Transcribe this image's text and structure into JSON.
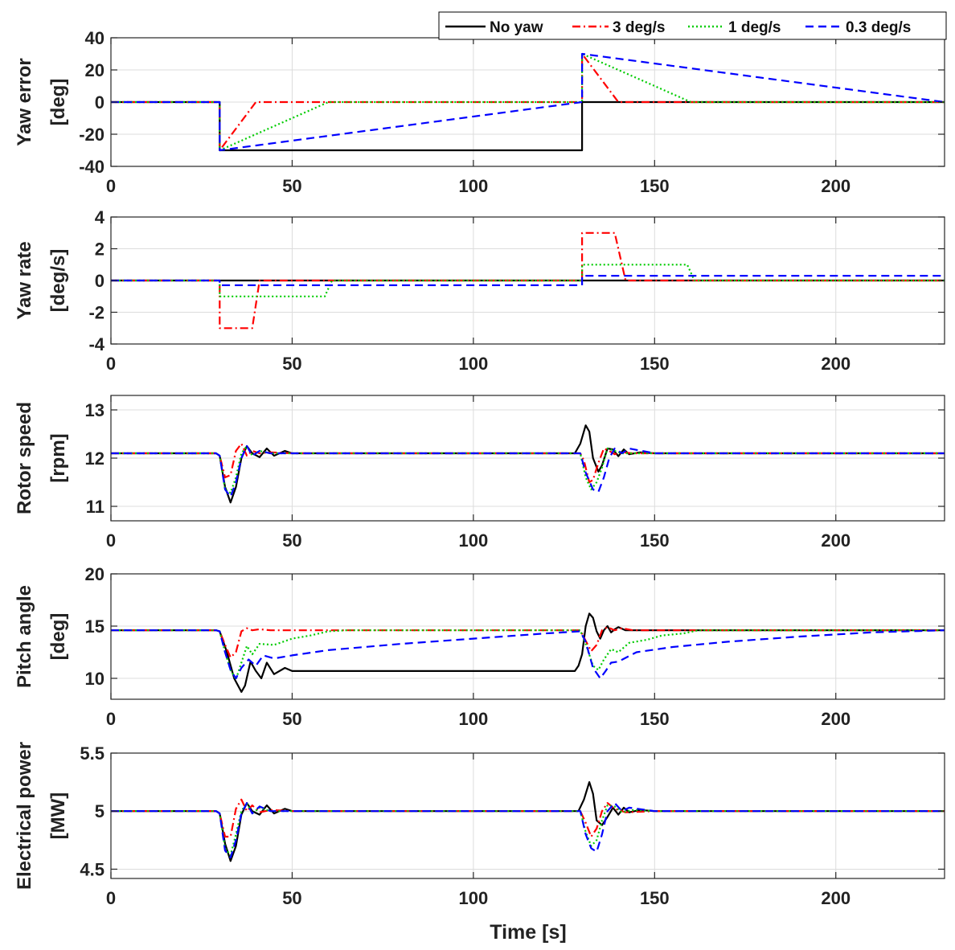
{
  "chart_data": {
    "type": "line",
    "xlabel": "Time [s]",
    "xlim": [
      0,
      230
    ],
    "xticks": [
      0,
      50,
      100,
      150,
      200
    ],
    "grid": true,
    "legend": {
      "placement": "top-right",
      "entries": [
        {
          "name": "No yaw",
          "color": "#000000",
          "style": "solid"
        },
        {
          "name": "3 deg/s",
          "color": "#ff0000",
          "style": "dashdot"
        },
        {
          "name": "1 deg/s",
          "color": "#00cc00",
          "style": "dotted"
        },
        {
          "name": "0.3 deg/s",
          "color": "#0000ff",
          "style": "dashed"
        }
      ]
    },
    "panels": [
      {
        "ylabel": [
          "Yaw error",
          "[deg]"
        ],
        "ylim": [
          -40,
          40
        ],
        "yticks": [
          -40,
          -20,
          0,
          20,
          40
        ],
        "series": [
          {
            "name": "No yaw",
            "x": [
              0,
              30,
              30,
              130,
              130,
              230
            ],
            "y": [
              0,
              0,
              -30,
              -30,
              0,
              0
            ]
          },
          {
            "name": "3 deg/s",
            "x": [
              0,
              30,
              30,
              40,
              130,
              130,
              140,
              230
            ],
            "y": [
              0,
              0,
              -30,
              0,
              0,
              30,
              0,
              0
            ]
          },
          {
            "name": "1 deg/s",
            "x": [
              0,
              30,
              30,
              60,
              130,
              130,
              160,
              230
            ],
            "y": [
              0,
              0,
              -30,
              0,
              0,
              30,
              0,
              0
            ]
          },
          {
            "name": "0.3 deg/s",
            "x": [
              0,
              30,
              30,
              130,
              130,
              230
            ],
            "y": [
              0,
              0,
              -30,
              0,
              30,
              0
            ]
          }
        ]
      },
      {
        "ylabel": [
          "Yaw rate",
          "[deg/s]"
        ],
        "ylim": [
          -4,
          4
        ],
        "yticks": [
          -4,
          -2,
          0,
          2,
          4
        ],
        "series": [
          {
            "name": "No yaw",
            "x": [
              0,
              230
            ],
            "y": [
              0,
              0
            ]
          },
          {
            "name": "3 deg/s",
            "x": [
              0,
              30,
              30,
              39,
              41,
              130,
              130,
              139,
              142,
              230
            ],
            "y": [
              0,
              0,
              -3,
              -3,
              0,
              0,
              3,
              3,
              0,
              0
            ]
          },
          {
            "name": "1 deg/s",
            "x": [
              0,
              30,
              30,
              59,
              61,
              130,
              130,
              159,
              161,
              230
            ],
            "y": [
              0,
              0,
              -1,
              -1,
              0,
              0,
              1,
              1,
              0,
              0
            ]
          },
          {
            "name": "0.3 deg/s",
            "x": [
              0,
              30,
              30,
              130,
              130,
              230
            ],
            "y": [
              0,
              0,
              -0.3,
              -0.3,
              0.3,
              0.3
            ]
          }
        ]
      },
      {
        "ylabel": [
          "Rotor speed",
          "[rpm]"
        ],
        "ylim": [
          10.7,
          13.3
        ],
        "yticks": [
          11,
          12,
          13
        ],
        "series": [
          {
            "name": "No yaw",
            "x": [
              0,
              29,
              30,
              31.5,
              33,
              34.5,
              36,
              37.5,
              39,
              41,
              43,
              45,
              48,
              50,
              128,
              129.5,
              131,
              132,
              133,
              134.5,
              135.5,
              137,
              138.5,
              140,
              141.5,
              143,
              146,
              150,
              230
            ],
            "y": [
              12.1,
              12.1,
              12.05,
              11.4,
              11.08,
              11.4,
              12.0,
              12.25,
              12.1,
              12.02,
              12.2,
              12.05,
              12.15,
              12.1,
              12.1,
              12.3,
              12.68,
              12.55,
              12.0,
              11.72,
              11.85,
              12.2,
              12.18,
              12.04,
              12.18,
              12.08,
              12.12,
              12.1,
              12.1
            ]
          },
          {
            "name": "3 deg/s",
            "x": [
              0,
              29,
              30,
              31.5,
              33,
              34.5,
              36,
              37.5,
              39,
              41,
              44,
              50,
              129.5,
              130.5,
              132,
              133,
              134.5,
              136,
              137.5,
              139,
              141,
              144,
              150,
              230
            ],
            "y": [
              12.1,
              12.1,
              12.05,
              11.6,
              11.65,
              12.15,
              12.3,
              12.05,
              12.15,
              12.1,
              12.12,
              12.1,
              12.1,
              11.95,
              11.5,
              11.55,
              11.9,
              12.2,
              12.15,
              12.08,
              12.12,
              12.1,
              12.1,
              12.1
            ]
          },
          {
            "name": "1 deg/s",
            "x": [
              0,
              29,
              30,
              31.5,
              33,
              34.5,
              36,
              37.5,
              39,
              41,
              44,
              50,
              129.5,
              131,
              132.5,
              134,
              135.5,
              137,
              139,
              141,
              144,
              150,
              230
            ],
            "y": [
              12.1,
              12.1,
              12.05,
              11.35,
              11.28,
              11.6,
              12.1,
              12.25,
              12.05,
              12.15,
              12.1,
              12.1,
              12.1,
              11.6,
              11.35,
              11.5,
              11.8,
              12.2,
              12.15,
              12.1,
              12.1,
              12.1,
              12.1
            ]
          },
          {
            "name": "0.3 deg/s",
            "x": [
              0,
              29,
              30,
              31.5,
              33,
              34.5,
              36,
              37.5,
              39,
              41,
              44,
              50,
              129.5,
              131,
              133,
              134.5,
              136,
              137.5,
              139,
              141,
              143,
              150,
              230
            ],
            "y": [
              12.1,
              12.1,
              12.05,
              11.35,
              11.2,
              11.5,
              12.0,
              12.25,
              12.05,
              12.15,
              12.1,
              12.1,
              12.1,
              11.7,
              11.35,
              11.3,
              11.6,
              12.0,
              12.2,
              12.1,
              12.2,
              12.1,
              12.1
            ]
          }
        ]
      },
      {
        "ylabel": [
          "Pitch angle",
          "[deg]"
        ],
        "ylim": [
          8,
          20
        ],
        "yticks": [
          10,
          15,
          20
        ],
        "series": [
          {
            "name": "No yaw",
            "x": [
              0,
              29,
              30,
              32,
              34,
              36,
              37,
              38.5,
              40,
              41.5,
              43,
              45,
              48,
              50,
              60,
              80,
              100,
              120,
              128,
              129,
              130,
              131,
              132,
              133,
              134,
              135,
              136,
              137,
              138,
              139,
              140,
              142,
              150,
              230
            ],
            "y": [
              14.6,
              14.6,
              14.5,
              12.5,
              10.0,
              8.7,
              9.3,
              11.6,
              10.7,
              10.0,
              11.5,
              10.4,
              11.0,
              10.7,
              10.7,
              10.7,
              10.7,
              10.7,
              10.7,
              11.2,
              12.3,
              15.0,
              16.2,
              15.8,
              14.5,
              13.8,
              14.6,
              15.0,
              14.4,
              14.7,
              14.9,
              14.6,
              14.6,
              14.6
            ]
          },
          {
            "name": "3 deg/s",
            "x": [
              0,
              29,
              30,
              31.5,
              33,
              34.5,
              36,
              37.5,
              39,
              41,
              44,
              50,
              129.5,
              131,
              132.5,
              134,
              135.5,
              137,
              139,
              141,
              144,
              150,
              230
            ],
            "y": [
              14.6,
              14.6,
              14.5,
              13.2,
              12.0,
              12.5,
              14.5,
              14.8,
              14.6,
              14.7,
              14.6,
              14.6,
              14.6,
              13.6,
              12.6,
              13.2,
              14.6,
              14.9,
              14.6,
              14.8,
              14.6,
              14.6,
              14.6
            ]
          },
          {
            "name": "1 deg/s",
            "x": [
              0,
              29,
              30,
              31.5,
              33,
              34.5,
              36,
              37.5,
              39,
              41,
              45,
              50,
              55,
              60,
              65,
              129.5,
              131,
              133,
              134.5,
              136,
              138,
              140,
              143,
              148,
              152,
              158,
              162,
              170,
              230
            ],
            "y": [
              14.6,
              14.6,
              14.5,
              12.5,
              10.8,
              9.9,
              11.5,
              13.1,
              12.3,
              13.3,
              13.2,
              13.8,
              14.1,
              14.5,
              14.6,
              14.6,
              13.3,
              11.2,
              10.8,
              11.8,
              12.8,
              12.5,
              13.4,
              13.7,
              14.1,
              14.3,
              14.6,
              14.6,
              14.6
            ]
          },
          {
            "name": "0.3 deg/s",
            "x": [
              0,
              29,
              30,
              31.5,
              33,
              34.5,
              36,
              38,
              40,
              42,
              45,
              50,
              60,
              80,
              100,
              120,
              129.5,
              131,
              133,
              135,
              136.5,
              138,
              140,
              145,
              155,
              170,
              190,
              210,
              230
            ],
            "y": [
              14.6,
              14.6,
              14.5,
              12.5,
              10.8,
              10.0,
              11.0,
              11.8,
              11.2,
              12.2,
              11.9,
              12.2,
              12.7,
              13.3,
              13.8,
              14.3,
              14.5,
              13.5,
              11.0,
              10.0,
              10.7,
              11.5,
              11.6,
              12.5,
              13.0,
              13.5,
              14.0,
              14.4,
              14.6
            ]
          }
        ]
      },
      {
        "ylabel": [
          "Electrical power",
          "[MW]"
        ],
        "ylim": [
          4.42,
          5.5
        ],
        "yticks": [
          4.5,
          5,
          5.5
        ],
        "series": [
          {
            "name": "No yaw",
            "x": [
              0,
              29,
              30,
              31.5,
              33,
              34.5,
              36,
              37.5,
              39,
              41,
              43,
              45,
              48,
              50,
              129,
              130.5,
              132,
              133,
              134,
              135.5,
              137,
              138.5,
              140,
              141.5,
              143,
              146,
              150,
              230
            ],
            "y": [
              5.0,
              5.0,
              4.98,
              4.72,
              4.57,
              4.7,
              4.97,
              5.07,
              5.0,
              4.97,
              5.05,
              4.98,
              5.02,
              5.0,
              5.0,
              5.1,
              5.25,
              5.15,
              4.92,
              4.88,
              4.95,
              5.03,
              4.97,
              5.03,
              4.99,
              5.01,
              5.0,
              5.0
            ]
          },
          {
            "name": "3 deg/s",
            "x": [
              0,
              29,
              30,
              31.5,
              33,
              34.5,
              36,
              37.5,
              39,
              41,
              44,
              50,
              129.5,
              131,
              132.5,
              134,
              135.5,
              137,
              139,
              142,
              150,
              230
            ],
            "y": [
              5.0,
              5.0,
              4.98,
              4.78,
              4.78,
              5.02,
              5.1,
              5.0,
              5.05,
              4.99,
              5.01,
              5.0,
              5.0,
              4.9,
              4.78,
              4.85,
              5.0,
              5.07,
              5.02,
              4.99,
              5.0,
              5.0
            ]
          },
          {
            "name": "1 deg/s",
            "x": [
              0,
              29,
              30,
              31.5,
              33,
              34.5,
              36,
              37.5,
              39,
              41,
              44,
              50,
              129.5,
              131,
              132.5,
              134,
              135.5,
              137,
              139,
              141,
              144,
              150,
              230
            ],
            "y": [
              5.0,
              5.0,
              4.98,
              4.68,
              4.62,
              4.8,
              5.0,
              5.07,
              4.98,
              5.03,
              5.0,
              5.0,
              5.0,
              4.82,
              4.7,
              4.75,
              4.92,
              5.05,
              5.04,
              4.99,
              5.01,
              5.0,
              5.0
            ]
          },
          {
            "name": "0.3 deg/s",
            "x": [
              0,
              29,
              30,
              31.5,
              33,
              34.5,
              36,
              37.5,
              39,
              41,
              44,
              50,
              129.5,
              131,
              132.5,
              134,
              135.5,
              137,
              139,
              141,
              143,
              150,
              230
            ],
            "y": [
              5.0,
              5.0,
              4.98,
              4.66,
              4.6,
              4.75,
              4.98,
              5.07,
              4.98,
              5.04,
              5.0,
              5.0,
              5.0,
              4.8,
              4.68,
              4.65,
              4.8,
              5.0,
              5.07,
              5.0,
              5.03,
              5.0,
              5.0
            ]
          }
        ]
      }
    ]
  }
}
